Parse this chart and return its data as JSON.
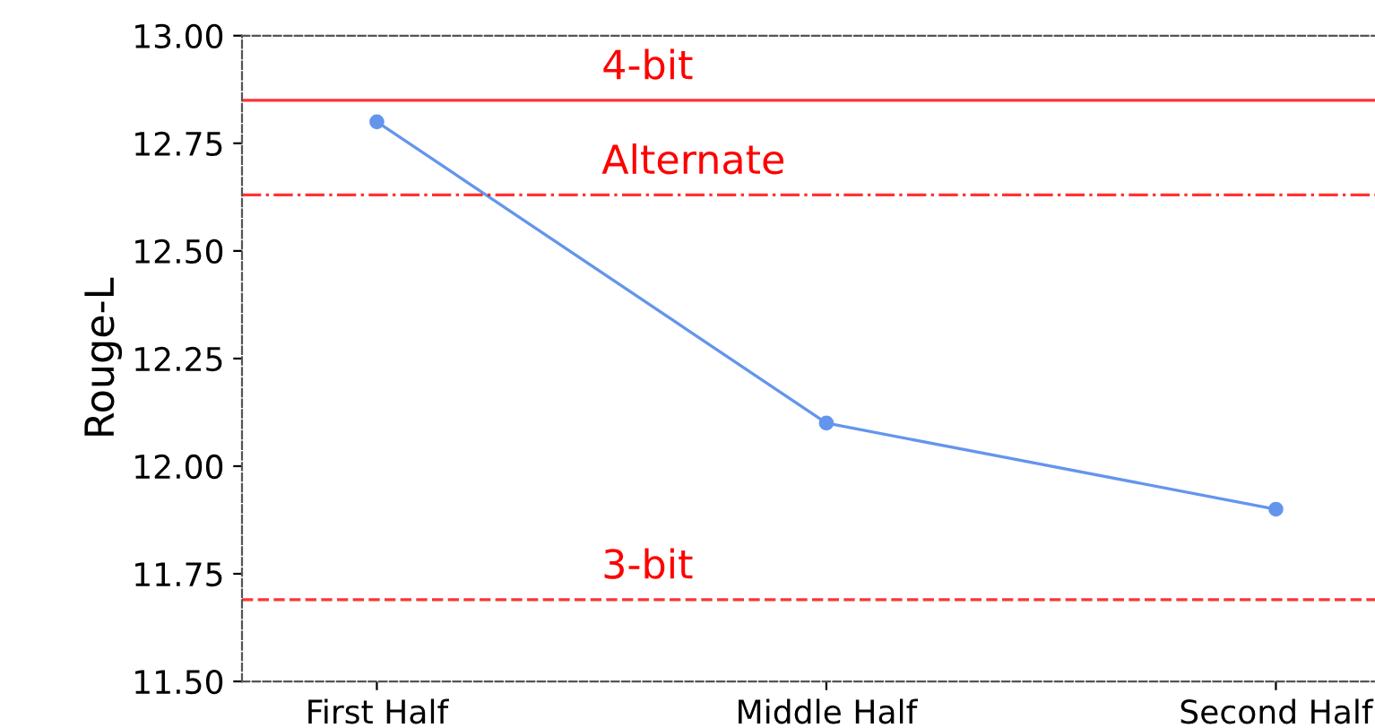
{
  "chart_data": {
    "type": "line",
    "ylabel": "Rouge-L",
    "categories": [
      "First Half",
      "Middle Half",
      "Second Half"
    ],
    "series": [
      {
        "color": "#6495ed",
        "values": [
          12.8,
          12.1,
          11.9
        ]
      }
    ],
    "marker": "circle",
    "line_style": "solid",
    "ylim": [
      11.5,
      13.0
    ],
    "yticks": [
      {
        "value": 11.5,
        "label": "11.50"
      },
      {
        "value": 11.75,
        "label": "11.75"
      },
      {
        "value": 12.0,
        "label": "12.00"
      },
      {
        "value": 12.25,
        "label": "12.25"
      },
      {
        "value": 12.5,
        "label": "12.50"
      },
      {
        "value": 12.75,
        "label": "12.75"
      },
      {
        "value": 13.0,
        "label": "13.00"
      }
    ],
    "ref_lines": [
      {
        "axis": "y",
        "value": 12.85,
        "label": "4-bit",
        "color": "#ff0000",
        "line_style": "solid"
      },
      {
        "axis": "y",
        "value": 12.63,
        "label": "Alternate",
        "color": "#ff0000",
        "line_style": "dashdot"
      },
      {
        "axis": "y",
        "value": 11.69,
        "label": "3-bit",
        "color": "#ff0000",
        "line_style": "dashed"
      }
    ],
    "grid": false,
    "legend": false
  }
}
